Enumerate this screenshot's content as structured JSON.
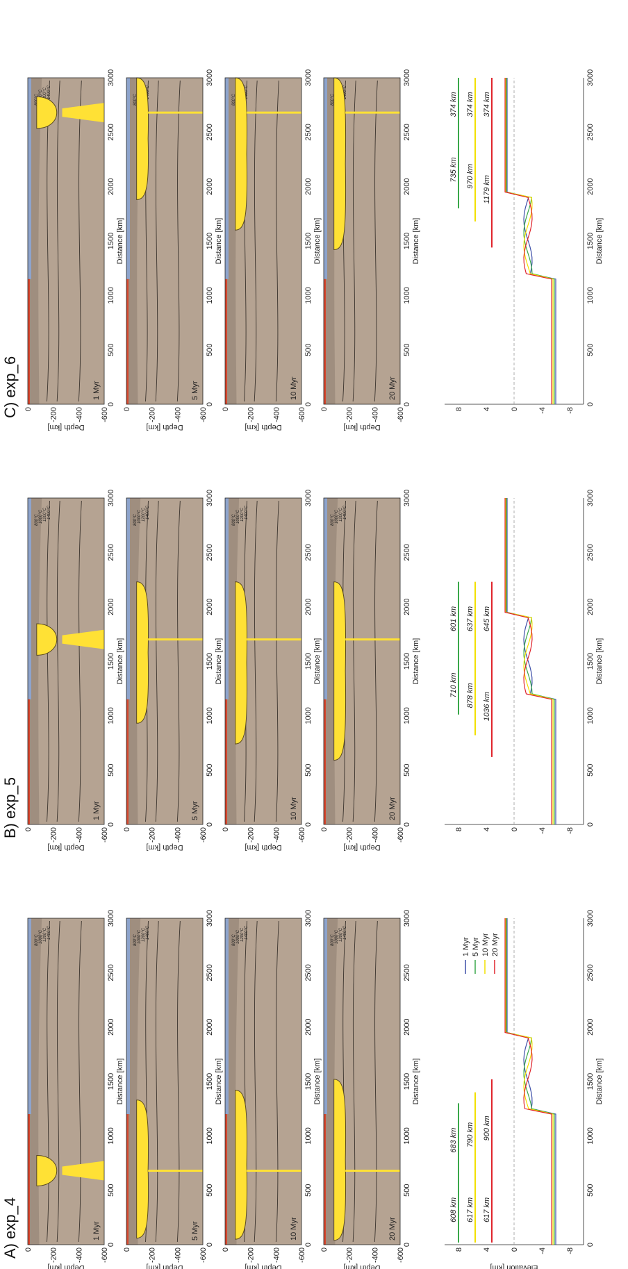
{
  "columns": [
    {
      "title": "A) exp_4",
      "plumeX": 680,
      "headW": 280,
      "sheet": [
        {
          "l": 0,
          "r": 0
        },
        {
          "l": 60,
          "r": 1330
        },
        {
          "l": 50,
          "r": 1420
        },
        {
          "l": 40,
          "r": 1520
        }
      ],
      "profile": {
        "arrows": [
          {
            "x1": 20,
            "x2": 1300,
            "split": 620,
            "left": "608 km",
            "right": "683 km",
            "color": "#3aa84a"
          },
          {
            "x1": 20,
            "x2": 1400,
            "split": 620,
            "left": "617 km",
            "right": "790 km",
            "color": "#f2e000"
          },
          {
            "x1": 20,
            "x2": 1520,
            "split": 620,
            "left": "617 km",
            "right": "900 km",
            "color": "#e0242c"
          }
        ],
        "legend": [
          "1 Myr",
          "5 Myr",
          "10 Myr",
          "20 Myr"
        ]
      }
    },
    {
      "title": "B) exp_5",
      "plumeX": 1700,
      "headW": 290,
      "sheet": [
        {
          "l": 0,
          "r": 0
        },
        {
          "l": 930,
          "r": 2230
        },
        {
          "l": 740,
          "r": 2230
        },
        {
          "l": 590,
          "r": 2230
        }
      ],
      "profile": {
        "arrows": [
          {
            "x1": 1010,
            "x2": 2230,
            "split": 1550,
            "left": "710 km",
            "right": "601 km",
            "color": "#3aa84a"
          },
          {
            "x1": 820,
            "x2": 2230,
            "split": 1550,
            "left": "878 km",
            "right": "637 km",
            "color": "#f2e000"
          },
          {
            "x1": 620,
            "x2": 2230,
            "split": 1550,
            "left": "1036 km",
            "right": "645 km",
            "color": "#e0242c"
          }
        ],
        "legend": []
      }
    },
    {
      "title": "C) exp_6",
      "plumeX": 2680,
      "headW": 290,
      "sheet": [
        {
          "l": 0,
          "r": 0
        },
        {
          "l": 1880,
          "r": 3000
        },
        {
          "l": 1600,
          "r": 3000
        },
        {
          "l": 1420,
          "r": 3000
        }
      ],
      "profile": {
        "arrows": [
          {
            "x1": 1800,
            "x2": 3000,
            "split": 2510,
            "left": "735 km",
            "right": "374 km",
            "color": "#3aa84a"
          },
          {
            "x1": 1680,
            "x2": 3000,
            "split": 2510,
            "left": "970 km",
            "right": "374 km",
            "color": "#f2e000"
          },
          {
            "x1": 1440,
            "x2": 3000,
            "split": 2510,
            "left": "1179 km",
            "right": "374 km",
            "color": "#e0242c"
          }
        ],
        "legend": []
      }
    }
  ],
  "rows": [
    "1 Myr",
    "5 Myr",
    "10 Myr",
    "20 Myr"
  ],
  "axes": {
    "depth_label": "Depth [km]",
    "depth_ticks": [
      "0",
      "-200",
      "-400",
      "-600"
    ],
    "distance_label": "Distance [km]",
    "distance_ticks": [
      "0",
      "500",
      "1000",
      "1500",
      "2000",
      "2500",
      "3000"
    ],
    "elevation_label": "Elevation [km]",
    "elevation_ticks": [
      "8",
      "4",
      "0",
      "-4",
      "-8"
    ]
  },
  "isotherms": [
    "800°C",
    "1000°C",
    "1200°C",
    "1400°C"
  ],
  "colors": {
    "mantle": "#b5a392",
    "lithosphere": "#8c7d70",
    "plume": "#ffe135",
    "ocean": "#8ea4cc",
    "ridge": "#d6472e",
    "blue": "#3d4fa8",
    "green": "#3aa84a",
    "yellow": "#f2e000",
    "red": "#e0242c"
  }
}
